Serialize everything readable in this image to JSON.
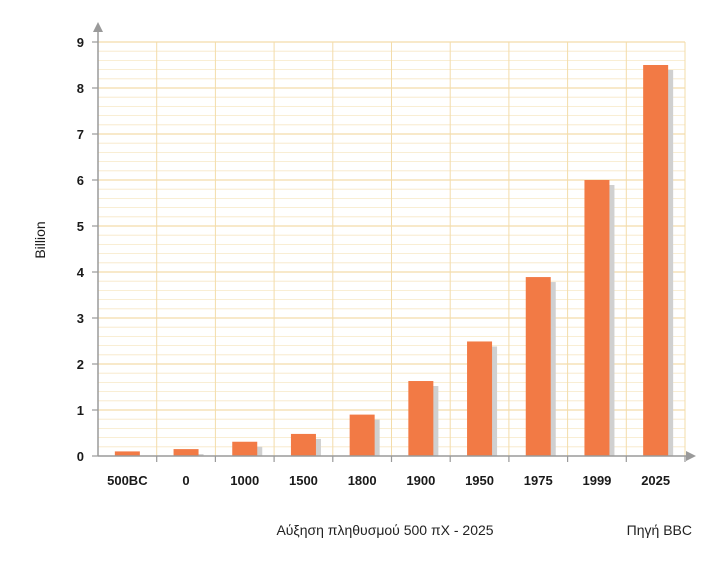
{
  "chart_data": {
    "type": "bar",
    "categories": [
      "500BC",
      "0",
      "1000",
      "1500",
      "1800",
      "1900",
      "1950",
      "1975",
      "1999",
      "2025"
    ],
    "values": [
      0.1,
      0.15,
      0.31,
      0.48,
      0.9,
      1.63,
      2.49,
      3.89,
      6.0,
      8.5
    ],
    "ylabel": "Billion",
    "ylim": [
      0,
      9
    ],
    "yticks": [
      0,
      1,
      2,
      3,
      4,
      5,
      6,
      7,
      8,
      9
    ],
    "grid": true,
    "colors": {
      "bar": "#f27a45",
      "shadow": "#d0d0d0",
      "grid_major": "#f3dcaa",
      "grid_minor": "#f7e8c6",
      "axis": "#9a9a9a"
    }
  },
  "caption": "Αύξηση πληθυσμού 500 πΧ - 2025",
  "source": "Πηγή BBC"
}
